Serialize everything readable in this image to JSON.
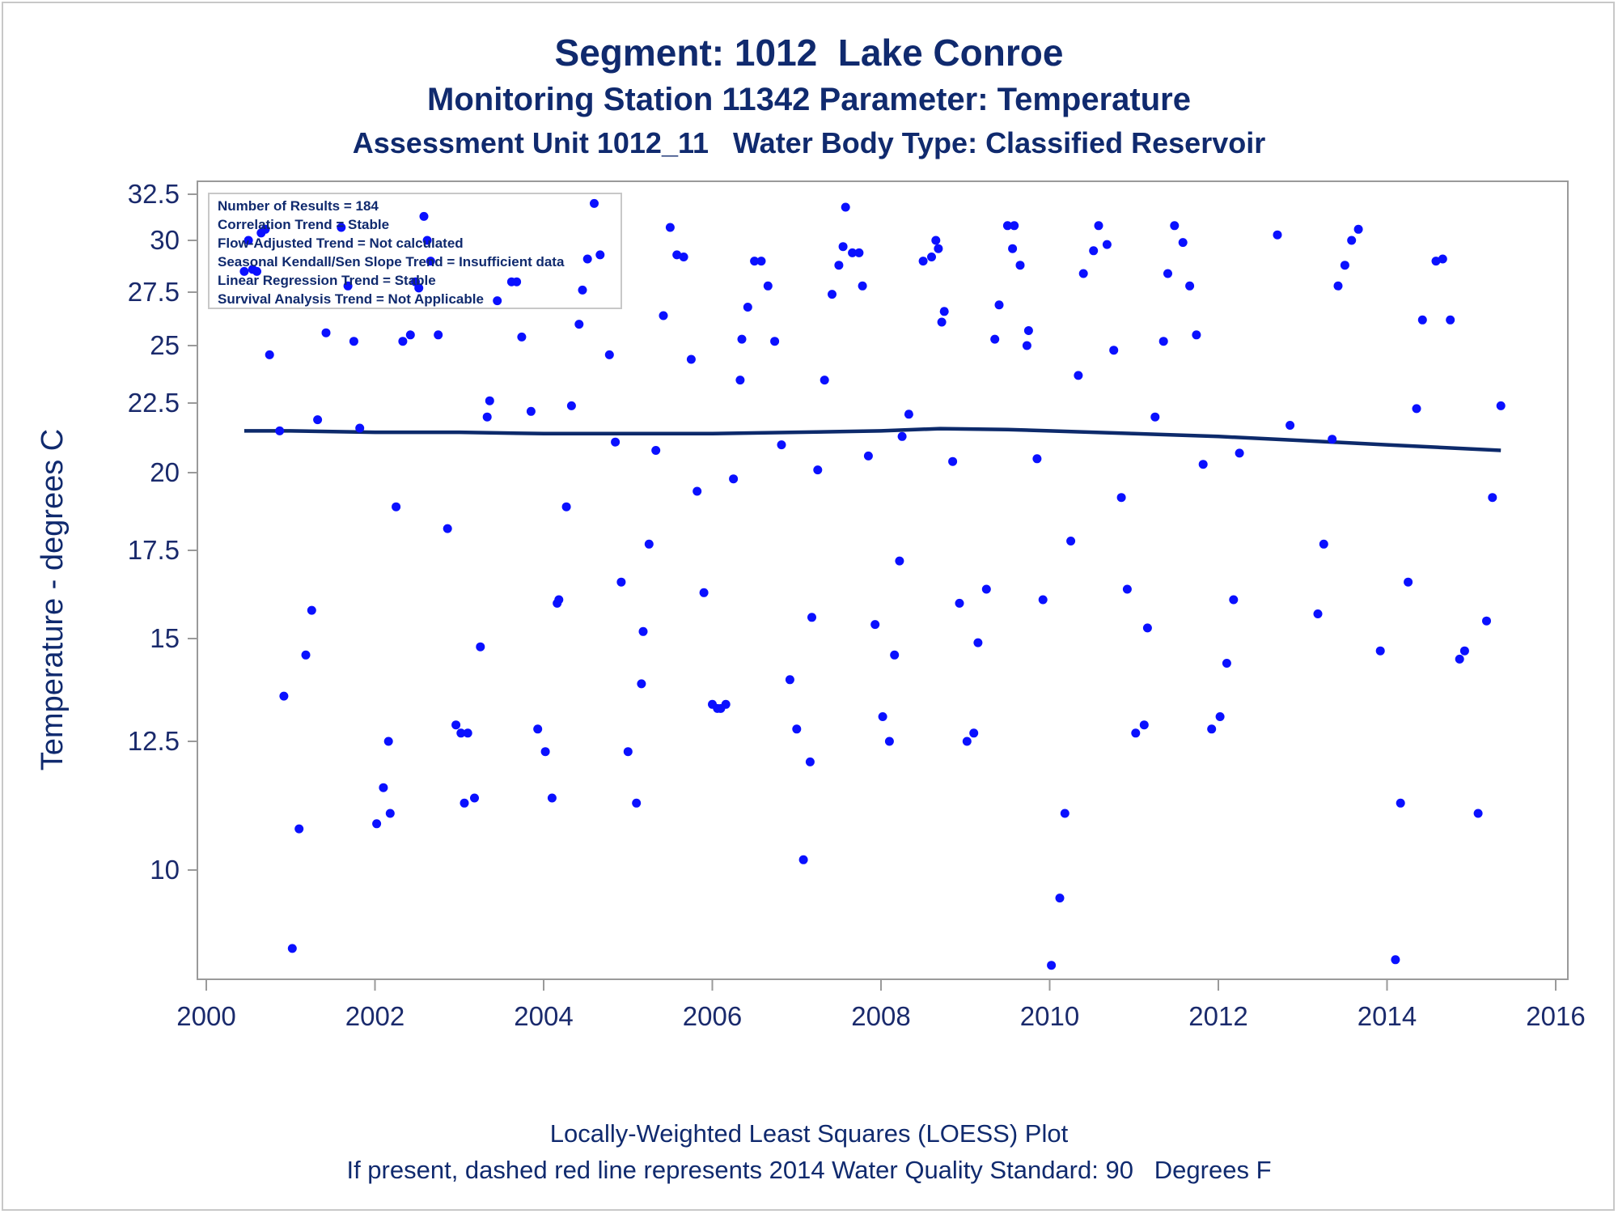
{
  "titles": {
    "line1": "Segment: 1012  Lake Conroe",
    "line2": "Monitoring Station 11342 Parameter: Temperature",
    "line3": "Assessment Unit 1012_11   Water Body Type: Classified Reservoir"
  },
  "footer": {
    "line1": "Locally-Weighted Least Squares (LOESS) Plot",
    "line2": "If present, dashed red line represents 2014 Water Quality Standard: 90   Degrees F"
  },
  "colors": {
    "points": "#0a10ff",
    "loess": "#0d2a6b",
    "text": "#102a6e",
    "axis": "#9a9a9a"
  },
  "chart_data": {
    "type": "scatter",
    "xlabel": "",
    "ylabel": "Temperature - degrees C",
    "xlim": [
      2000,
      2016
    ],
    "ylim": [
      8.05,
      32.5
    ],
    "y_scale": "nonlinear (tick spacing narrows toward high values)",
    "x_ticks": [
      "2000",
      "2002",
      "2004",
      "2006",
      "2008",
      "2010",
      "2012",
      "2014",
      "2016"
    ],
    "y_ticks": [
      "10",
      "12.5",
      "15",
      "17.5",
      "20",
      "22.5",
      "25",
      "27.5",
      "30",
      "32.5"
    ],
    "y_tick_values": [
      10,
      12.5,
      15,
      17.5,
      20,
      22.5,
      25,
      27.5,
      30,
      32.5
    ],
    "grid": false,
    "legend_placement": "top-left",
    "legend": [
      "Number of Results = 184",
      "Correlation Trend = Stable",
      "Flow-Adjusted Trend = Not calculated",
      "Seasonal Kendall/Sen Slope Trend = Insufficient data",
      "Linear Regression Trend = Stable",
      "Survival Analysis Trend = Not Applicable"
    ],
    "series": [
      {
        "type": "scatter",
        "points": [
          [
            2000.45,
            28.5
          ],
          [
            2000.5,
            30.0
          ],
          [
            2000.55,
            28.6
          ],
          [
            2000.6,
            28.5
          ],
          [
            2000.65,
            30.4
          ],
          [
            2000.7,
            30.6
          ],
          [
            2000.75,
            24.6
          ],
          [
            2000.87,
            21.5
          ],
          [
            2000.92,
            13.6
          ],
          [
            2001.02,
            8.6
          ],
          [
            2001.1,
            10.8
          ],
          [
            2001.18,
            14.6
          ],
          [
            2001.25,
            15.8
          ],
          [
            2001.32,
            21.9
          ],
          [
            2001.42,
            25.6
          ],
          [
            2001.6,
            30.7
          ],
          [
            2001.68,
            27.8
          ],
          [
            2001.75,
            25.2
          ],
          [
            2001.82,
            21.6
          ],
          [
            2002.02,
            10.9
          ],
          [
            2002.1,
            11.6
          ],
          [
            2002.16,
            12.5
          ],
          [
            2002.18,
            11.1
          ],
          [
            2002.25,
            18.9
          ],
          [
            2002.33,
            25.2
          ],
          [
            2002.42,
            25.5
          ],
          [
            2002.48,
            28.0
          ],
          [
            2002.52,
            27.7
          ],
          [
            2002.58,
            31.3
          ],
          [
            2002.62,
            30.0
          ],
          [
            2002.66,
            29.0
          ],
          [
            2002.75,
            25.5
          ],
          [
            2002.86,
            18.2
          ],
          [
            2002.96,
            12.9
          ],
          [
            2003.02,
            12.7
          ],
          [
            2003.06,
            11.3
          ],
          [
            2003.1,
            12.7
          ],
          [
            2003.18,
            11.4
          ],
          [
            2003.25,
            14.8
          ],
          [
            2003.33,
            22.0
          ],
          [
            2003.36,
            22.6
          ],
          [
            2003.45,
            27.1
          ],
          [
            2003.62,
            28.0
          ],
          [
            2003.68,
            28.0
          ],
          [
            2003.74,
            25.4
          ],
          [
            2003.85,
            22.2
          ],
          [
            2003.93,
            12.8
          ],
          [
            2004.02,
            12.3
          ],
          [
            2004.1,
            11.4
          ],
          [
            2004.16,
            16.0
          ],
          [
            2004.18,
            16.1
          ],
          [
            2004.27,
            18.9
          ],
          [
            2004.33,
            22.4
          ],
          [
            2004.42,
            26.0
          ],
          [
            2004.46,
            27.6
          ],
          [
            2004.52,
            29.1
          ],
          [
            2004.6,
            32.0
          ],
          [
            2004.67,
            29.3
          ],
          [
            2004.78,
            24.6
          ],
          [
            2004.85,
            21.1
          ],
          [
            2004.92,
            16.6
          ],
          [
            2005.0,
            12.3
          ],
          [
            2005.1,
            11.3
          ],
          [
            2005.16,
            13.9
          ],
          [
            2005.18,
            15.2
          ],
          [
            2005.25,
            17.7
          ],
          [
            2005.33,
            20.8
          ],
          [
            2005.42,
            26.4
          ],
          [
            2005.5,
            30.7
          ],
          [
            2005.58,
            29.3
          ],
          [
            2005.66,
            29.2
          ],
          [
            2005.75,
            24.4
          ],
          [
            2005.82,
            19.4
          ],
          [
            2005.9,
            16.3
          ],
          [
            2006.0,
            13.4
          ],
          [
            2006.06,
            13.3
          ],
          [
            2006.1,
            13.3
          ],
          [
            2006.16,
            13.4
          ],
          [
            2006.25,
            19.8
          ],
          [
            2006.33,
            23.5
          ],
          [
            2006.35,
            25.3
          ],
          [
            2006.42,
            26.8
          ],
          [
            2006.5,
            29.0
          ],
          [
            2006.58,
            29.0
          ],
          [
            2006.66,
            27.8
          ],
          [
            2006.74,
            25.2
          ],
          [
            2006.82,
            21.0
          ],
          [
            2006.92,
            14.0
          ],
          [
            2007.0,
            12.8
          ],
          [
            2007.08,
            10.2
          ],
          [
            2007.16,
            12.1
          ],
          [
            2007.18,
            15.6
          ],
          [
            2007.25,
            20.1
          ],
          [
            2007.33,
            23.5
          ],
          [
            2007.42,
            27.4
          ],
          [
            2007.5,
            28.8
          ],
          [
            2007.55,
            29.7
          ],
          [
            2007.58,
            31.8
          ],
          [
            2007.66,
            29.4
          ],
          [
            2007.74,
            29.4
          ],
          [
            2007.78,
            27.8
          ],
          [
            2007.85,
            20.6
          ],
          [
            2007.93,
            15.4
          ],
          [
            2008.02,
            13.1
          ],
          [
            2008.1,
            12.5
          ],
          [
            2008.16,
            14.6
          ],
          [
            2008.22,
            17.2
          ],
          [
            2008.25,
            21.3
          ],
          [
            2008.33,
            22.1
          ],
          [
            2008.5,
            29.0
          ],
          [
            2008.6,
            29.2
          ],
          [
            2008.65,
            30.0
          ],
          [
            2008.68,
            29.6
          ],
          [
            2008.72,
            26.1
          ],
          [
            2008.75,
            26.6
          ],
          [
            2008.85,
            20.4
          ],
          [
            2008.93,
            16.0
          ],
          [
            2009.02,
            12.5
          ],
          [
            2009.1,
            12.7
          ],
          [
            2009.15,
            14.9
          ],
          [
            2009.25,
            16.4
          ],
          [
            2009.35,
            25.3
          ],
          [
            2009.4,
            26.9
          ],
          [
            2009.5,
            30.8
          ],
          [
            2009.56,
            29.6
          ],
          [
            2009.58,
            30.8
          ],
          [
            2009.65,
            28.8
          ],
          [
            2009.73,
            25.0
          ],
          [
            2009.75,
            25.7
          ],
          [
            2009.85,
            20.5
          ],
          [
            2009.92,
            16.1
          ],
          [
            2010.02,
            8.3
          ],
          [
            2010.12,
            9.5
          ],
          [
            2010.18,
            11.1
          ],
          [
            2010.25,
            17.8
          ],
          [
            2010.34,
            23.7
          ],
          [
            2010.4,
            28.4
          ],
          [
            2010.52,
            29.5
          ],
          [
            2010.58,
            30.8
          ],
          [
            2010.68,
            29.8
          ],
          [
            2010.76,
            24.8
          ],
          [
            2010.85,
            19.2
          ],
          [
            2010.92,
            16.4
          ],
          [
            2011.02,
            12.7
          ],
          [
            2011.12,
            12.9
          ],
          [
            2011.16,
            15.3
          ],
          [
            2011.25,
            22.0
          ],
          [
            2011.35,
            25.2
          ],
          [
            2011.4,
            28.4
          ],
          [
            2011.48,
            30.8
          ],
          [
            2011.58,
            29.9
          ],
          [
            2011.66,
            27.8
          ],
          [
            2011.74,
            25.5
          ],
          [
            2011.82,
            20.3
          ],
          [
            2011.92,
            12.8
          ],
          [
            2012.02,
            13.1
          ],
          [
            2012.1,
            14.4
          ],
          [
            2012.18,
            16.1
          ],
          [
            2012.25,
            20.7
          ],
          [
            2012.7,
            30.3
          ],
          [
            2012.85,
            21.7
          ],
          [
            2013.18,
            15.7
          ],
          [
            2013.25,
            17.7
          ],
          [
            2013.35,
            21.2
          ],
          [
            2013.42,
            27.8
          ],
          [
            2013.5,
            28.8
          ],
          [
            2013.58,
            30.0
          ],
          [
            2013.66,
            30.6
          ],
          [
            2013.92,
            14.7
          ],
          [
            2014.1,
            8.4
          ],
          [
            2014.16,
            11.3
          ],
          [
            2014.25,
            16.6
          ],
          [
            2014.35,
            22.3
          ],
          [
            2014.42,
            26.2
          ],
          [
            2014.58,
            29.0
          ],
          [
            2014.66,
            29.1
          ],
          [
            2014.75,
            26.2
          ],
          [
            2014.86,
            14.5
          ],
          [
            2014.92,
            14.7
          ],
          [
            2015.08,
            11.1
          ],
          [
            2015.18,
            15.5
          ],
          [
            2015.25,
            19.2
          ],
          [
            2015.35,
            22.4
          ]
        ]
      },
      {
        "type": "line",
        "points": [
          [
            2000.45,
            21.5
          ],
          [
            2001.0,
            21.5
          ],
          [
            2002.0,
            21.45
          ],
          [
            2003.0,
            21.45
          ],
          [
            2004.0,
            21.4
          ],
          [
            2005.0,
            21.4
          ],
          [
            2006.0,
            21.4
          ],
          [
            2007.0,
            21.45
          ],
          [
            2008.0,
            21.5
          ],
          [
            2008.7,
            21.58
          ],
          [
            2009.5,
            21.55
          ],
          [
            2010.0,
            21.5
          ],
          [
            2011.0,
            21.4
          ],
          [
            2012.0,
            21.3
          ],
          [
            2013.0,
            21.15
          ],
          [
            2014.0,
            21.0
          ],
          [
            2015.35,
            20.8
          ]
        ]
      }
    ]
  }
}
